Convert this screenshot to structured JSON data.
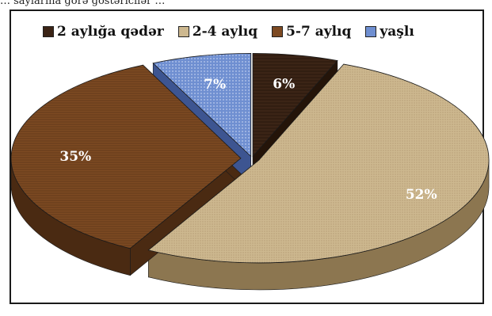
{
  "caption_fragment": "… saylarına görə göstəricilər …",
  "chart_data": {
    "type": "pie",
    "style": "3d-exploded",
    "legend_position": "top",
    "categories": [
      "2 aylığa qədər",
      "2-4 aylıq",
      "5-7 aylıq",
      "yaşlı"
    ],
    "values": [
      6,
      52,
      35,
      7
    ],
    "value_labels": [
      "6%",
      "52%",
      "35%",
      "7%"
    ],
    "colors": [
      "#3b2416",
      "#cdb88f",
      "#7d4a22",
      "#6f8fd1"
    ],
    "side_colors": [
      "#241409",
      "#8c7650",
      "#4a2a12",
      "#3d5591"
    ]
  }
}
